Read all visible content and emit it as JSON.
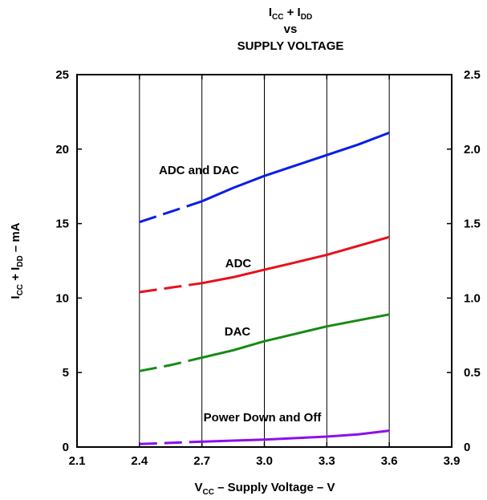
{
  "chart_data": {
    "type": "line",
    "title": {
      "line1": {
        "a": "I",
        "a_sub": "CC",
        "plus": " + I",
        "b_sub": "DD"
      },
      "line2": "vs",
      "line3": "SUPPLY VOLTAGE"
    },
    "xlabel": {
      "pre": "V",
      "sub": "CC",
      "post": " – Supply Voltage – V"
    },
    "ylabel": {
      "i1": "I",
      "s1": "CC",
      "mid": " + I",
      "s2": "DD",
      "post": " – mA"
    },
    "xlim": [
      2.1,
      3.9
    ],
    "ylim": [
      0,
      25
    ],
    "y2lim": [
      0,
      2.5
    ],
    "x_ticks": [
      "2.1",
      "2.4",
      "2.7",
      "3.0",
      "3.3",
      "3.6",
      "3.9"
    ],
    "y_ticks": [
      "0",
      "5",
      "10",
      "15",
      "20",
      "25"
    ],
    "y2_ticks": [
      "0",
      "0.5",
      "1.0",
      "1.5",
      "2.0",
      "2.5"
    ],
    "grid": "x-only",
    "dashed_below_x": 2.7,
    "series": [
      {
        "name": "ADC and DAC",
        "color": "#0a1ee6",
        "x": [
          2.4,
          2.55,
          2.7,
          2.85,
          3.0,
          3.15,
          3.3,
          3.45,
          3.6
        ],
        "y": [
          15.1,
          15.8,
          16.5,
          17.4,
          18.2,
          18.9,
          19.6,
          20.3,
          21.1
        ]
      },
      {
        "name": "ADC",
        "color": "#e8101a",
        "x": [
          2.4,
          2.55,
          2.7,
          2.85,
          3.0,
          3.15,
          3.3,
          3.45,
          3.6
        ],
        "y": [
          10.4,
          10.7,
          11.0,
          11.4,
          11.9,
          12.4,
          12.9,
          13.5,
          14.1
        ]
      },
      {
        "name": "DAC",
        "color": "#168a16",
        "x": [
          2.4,
          2.55,
          2.7,
          2.85,
          3.0,
          3.15,
          3.3,
          3.45,
          3.6
        ],
        "y": [
          5.1,
          5.5,
          6.0,
          6.5,
          7.1,
          7.6,
          8.1,
          8.5,
          8.9
        ]
      },
      {
        "name": "Power Down and Off",
        "color": "#8a10ee",
        "x": [
          2.4,
          2.55,
          2.7,
          2.85,
          3.0,
          3.15,
          3.3,
          3.45,
          3.6
        ],
        "y": [
          0.2,
          0.28,
          0.36,
          0.43,
          0.5,
          0.6,
          0.7,
          0.85,
          1.1
        ]
      }
    ]
  }
}
